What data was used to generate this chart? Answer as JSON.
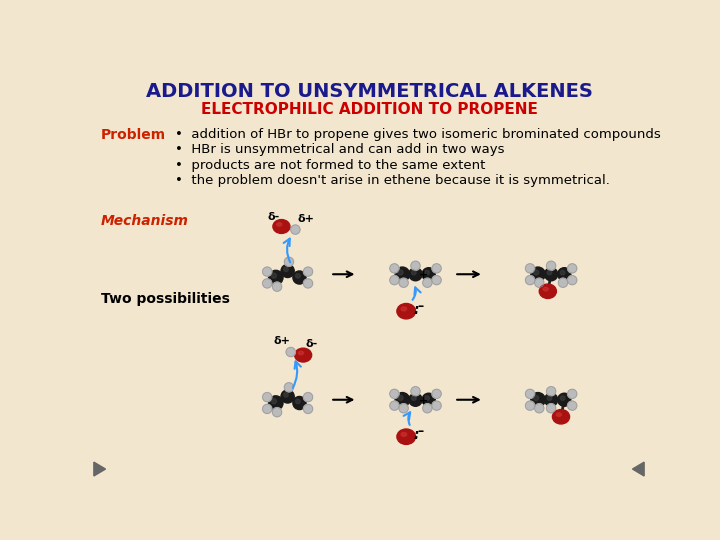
{
  "title": "ADDITION TO UNSYMMETRICAL ALKENES",
  "subtitle": "ELECTROPHILIC ADDITION TO PROPENE",
  "title_color": "#1a1a8c",
  "subtitle_color": "#CC0000",
  "background_color": "#F2E6CE",
  "problem_label": "Problem",
  "problem_label_color": "#CC2200",
  "bullet_points": [
    "addition of HBr to propene gives two isomeric brominated compounds",
    "HBr is unsymmetrical and can add in two ways",
    "products are not formed to the same extent",
    "the problem doesn't arise in ethene because it is symmetrical."
  ],
  "mechanism_label": "Mechanism",
  "mechanism_label_color": "#CC2200",
  "two_poss_label": "Two possibilities",
  "two_poss_label_color": "#000000",
  "text_color": "#000000",
  "arrow_color": "#3399FF",
  "bullet_color": "#000000",
  "delta_color": "#000000",
  "carbon_color": "#1a1a1a",
  "hydrogen_color": "#BBBBBB",
  "bromine_color": "#AA1111",
  "bond_color": "#222222",
  "nav_arrow_color": "#666666"
}
